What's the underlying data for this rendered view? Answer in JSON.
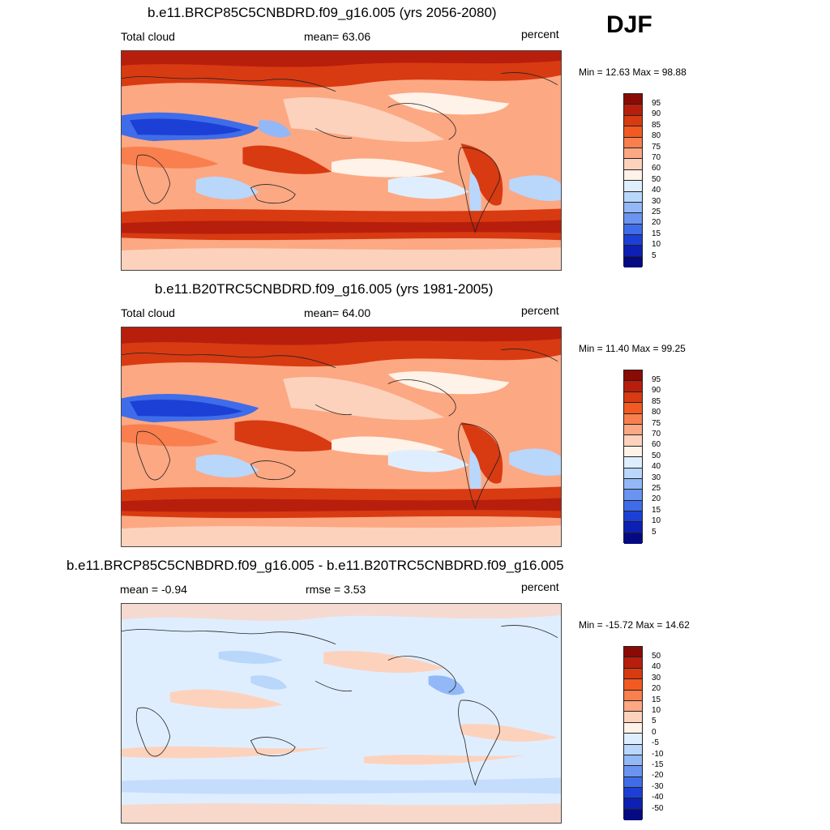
{
  "season": "DJF",
  "colors": {
    "abs": [
      "#8a0b06",
      "#b81e0c",
      "#d83a12",
      "#f25a22",
      "#f97f4f",
      "#fca883",
      "#fdd2bd",
      "#fff2e8",
      "#dfeeff",
      "#b9d6fb",
      "#92b8f7",
      "#6a94ef",
      "#3f6de9",
      "#1c40d6",
      "#0d20b3",
      "#050a82"
    ],
    "diff": [
      "#8a0b06",
      "#b81e0c",
      "#d83a12",
      "#f25a22",
      "#f97f4f",
      "#fca883",
      "#fdd2bd",
      "#fff2e8",
      "#dfeeff",
      "#b9d6fb",
      "#92b8f7",
      "#6a94ef",
      "#3f6de9",
      "#1c40d6",
      "#0d20b3",
      "#050a82"
    ]
  },
  "panels": [
    {
      "title": "b.e11.BRCP85C5CNBDRD.f09_g16.005 (yrs 2056-2080)",
      "left_label": "Total cloud",
      "center_label": "mean=  63.06",
      "right_label": "percent",
      "minmax": "Min =  12.63 Max =  98.88",
      "cbar_labels": [
        "95",
        "90",
        "85",
        "80",
        "75",
        "70",
        "60",
        "50",
        "40",
        "30",
        "25",
        "20",
        "15",
        "10",
        "5"
      ]
    },
    {
      "title": "b.e11.B20TRC5CNBDRD.f09_g16.005 (yrs 1981-2005)",
      "left_label": "Total cloud",
      "center_label": "mean=  64.00",
      "right_label": "percent",
      "minmax": "Min =  11.40 Max =  99.25",
      "cbar_labels": [
        "95",
        "90",
        "85",
        "80",
        "75",
        "70",
        "60",
        "50",
        "40",
        "30",
        "25",
        "20",
        "15",
        "10",
        "5"
      ]
    },
    {
      "title": "b.e11.BRCP85C5CNBDRD.f09_g16.005 - b.e11.B20TRC5CNBDRD.f09_g16.005",
      "left_label": "mean =  -0.94",
      "center_label": "rmse =   3.53",
      "right_label": "percent",
      "minmax": "Min = -15.72 Max =  14.62",
      "cbar_labels": [
        "50",
        "40",
        "30",
        "20",
        "15",
        "10",
        "5",
        "0",
        "-5",
        "-10",
        "-15",
        "-20",
        "-30",
        "-40",
        "-50"
      ]
    }
  ]
}
